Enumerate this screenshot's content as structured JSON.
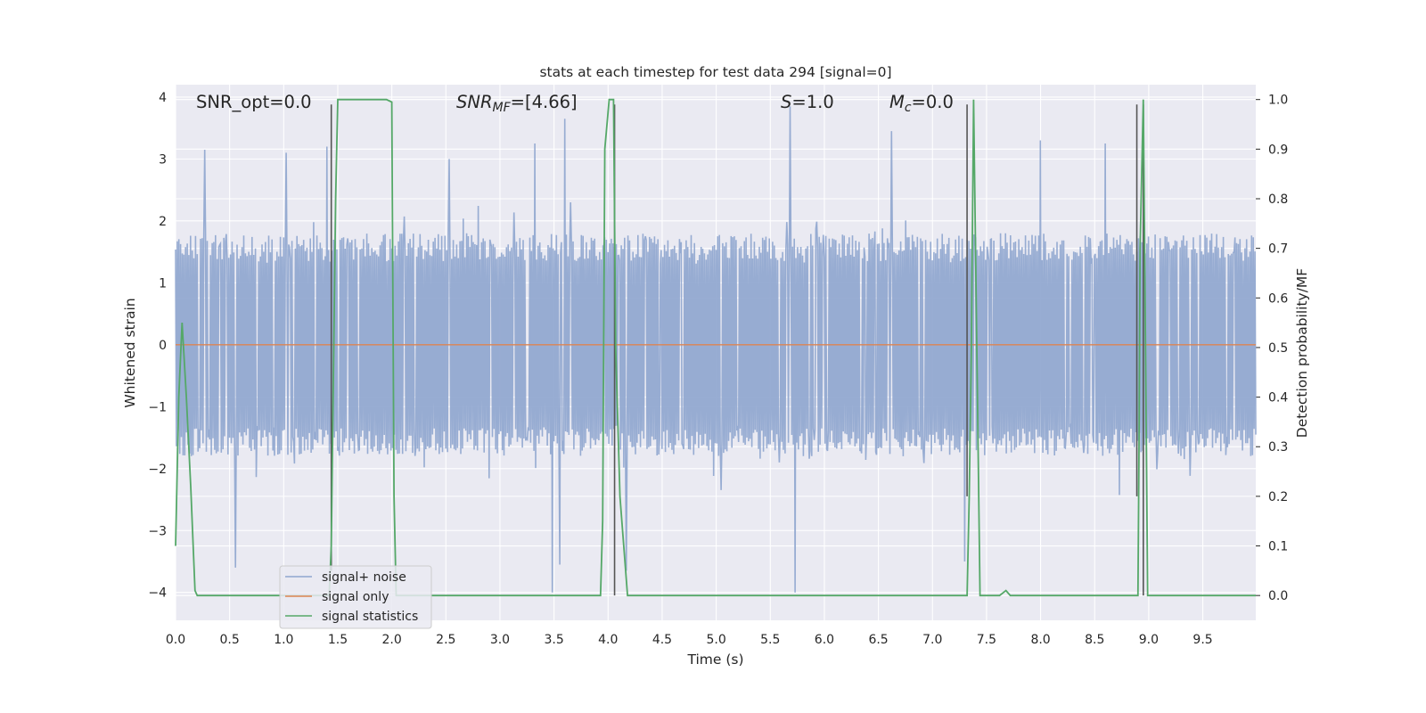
{
  "chart_data": {
    "type": "line",
    "title": "stats at each timestep for test data 294 [signal=0]",
    "xlabel": "Time (s)",
    "ylabel": "Whitened strain",
    "ylabel_right": "Detection probability/MF",
    "xlim": [
      0.0,
      9.99
    ],
    "ylim": [
      -4.45,
      4.2
    ],
    "ylim_right": [
      -0.05,
      1.03
    ],
    "xticks": [
      "0.0",
      "0.5",
      "1.0",
      "1.5",
      "2.0",
      "2.5",
      "3.0",
      "3.5",
      "4.0",
      "4.5",
      "5.0",
      "5.5",
      "6.0",
      "6.5",
      "7.0",
      "7.5",
      "8.0",
      "8.5",
      "9.0",
      "9.5"
    ],
    "xtick_values": [
      0.0,
      0.5,
      1.0,
      1.5,
      2.0,
      2.5,
      3.0,
      3.5,
      4.0,
      4.5,
      5.0,
      5.5,
      6.0,
      6.5,
      7.0,
      7.5,
      8.0,
      8.5,
      9.0,
      9.5
    ],
    "yticks": [
      "4",
      "3",
      "2",
      "1",
      "0",
      "−1",
      "−2",
      "−3",
      "−4"
    ],
    "ytick_values": [
      4,
      3,
      2,
      1,
      0,
      -1,
      -2,
      -3,
      -4
    ],
    "yticks_right": [
      "1.0",
      "0.9",
      "0.8",
      "0.7",
      "0.6",
      "0.5",
      "0.4",
      "0.3",
      "0.2",
      "0.1",
      "0.0"
    ],
    "ytick_right_values": [
      1.0,
      0.9,
      0.8,
      0.7,
      0.6,
      0.5,
      0.4,
      0.3,
      0.2,
      0.1,
      0.0
    ],
    "annotations": {
      "snr_opt": "SNR_opt=0.0",
      "snr_mf_sym": "SNR",
      "snr_mf_sub": "MF",
      "snr_mf_val": "=[4.66]",
      "s_sym": "S",
      "s_val": "=1.0",
      "mc_sym": "M",
      "mc_sub": "c",
      "mc_val": "=0.0"
    },
    "legend": {
      "placement": "lower-left",
      "entries": [
        "signal+ noise",
        "signal only",
        "signal statistics"
      ]
    },
    "series": [
      {
        "name": "signal+ noise",
        "kind": "noise",
        "color": "#8fa6cf",
        "typical_amplitude": 1.65,
        "peak_amplitude": 3.85,
        "notable_peaks": [
          {
            "x": 0.27,
            "y": 3.15
          },
          {
            "x": 1.02,
            "y": 3.1
          },
          {
            "x": 1.4,
            "y": 3.2
          },
          {
            "x": 2.53,
            "y": 3.0
          },
          {
            "x": 3.32,
            "y": 3.25
          },
          {
            "x": 3.48,
            "y": -4.0
          },
          {
            "x": 3.6,
            "y": 3.65
          },
          {
            "x": 5.68,
            "y": 3.85
          },
          {
            "x": 5.73,
            "y": -4.0
          },
          {
            "x": 6.62,
            "y": 3.45
          },
          {
            "x": 8.0,
            "y": 3.3
          },
          {
            "x": 8.6,
            "y": 3.25
          },
          {
            "x": 0.55,
            "y": -3.6
          },
          {
            "x": 3.55,
            "y": -3.55
          },
          {
            "x": 4.17,
            "y": -3.65
          },
          {
            "x": 7.3,
            "y": -3.5
          }
        ]
      },
      {
        "name": "signal only",
        "color": "#dd8452",
        "x": [
          0.0,
          9.99
        ],
        "y": [
          0.0,
          0.0
        ]
      },
      {
        "name": "signal statistics",
        "color": "#55a868",
        "axis": "right",
        "x": [
          0.0,
          0.03,
          0.06,
          0.1,
          0.14,
          0.18,
          0.2,
          0.24,
          1.42,
          1.44,
          1.48,
          1.5,
          1.95,
          2.0,
          2.02,
          2.04,
          3.93,
          3.95,
          3.97,
          4.01,
          4.05,
          4.07,
          4.11,
          4.18,
          7.32,
          7.34,
          7.36,
          7.38,
          7.41,
          7.44,
          7.62,
          7.68,
          7.72,
          7.74,
          8.9,
          8.91,
          8.92,
          8.95,
          8.97,
          8.99,
          9.99
        ],
        "y": [
          0.1,
          0.4,
          0.55,
          0.4,
          0.22,
          0.01,
          0.0,
          0.0,
          0.0,
          0.1,
          0.8,
          1.0,
          1.0,
          0.995,
          0.2,
          0.0,
          0.0,
          0.15,
          0.9,
          1.0,
          1.0,
          0.5,
          0.2,
          0.0,
          0.0,
          0.2,
          0.5,
          1.0,
          0.5,
          0.0,
          0.0,
          0.01,
          0.0,
          0.0,
          0.0,
          0.3,
          0.7,
          1.0,
          0.5,
          0.0,
          0.0
        ]
      },
      {
        "name": "mf-markers",
        "color": "#555555",
        "axis": "right",
        "x": [
          1.44,
          4.06,
          7.32,
          8.89,
          8.95
        ],
        "top": [
          0.99,
          0.99,
          0.99,
          0.99,
          0.99
        ],
        "bottom": [
          0.05,
          0.0,
          0.2,
          0.2,
          0.0
        ]
      }
    ]
  }
}
